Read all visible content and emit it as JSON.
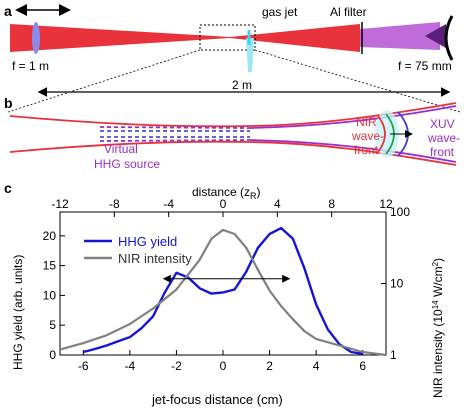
{
  "panel_a": {
    "label": "a",
    "f1": "f = 1 m",
    "gas_jet": "gas jet",
    "al_filter": "Al filter",
    "f75": "f = 75 mm",
    "distance": "2 m"
  },
  "panel_b": {
    "label": "b",
    "virtual1": "Virtual",
    "virtual2": "HHG source",
    "nir1": "NIR",
    "nir2": "wave-",
    "nir3": "front",
    "xuv1": "XUV",
    "xuv2": "wave-",
    "xuv3": "front"
  },
  "panel_c": {
    "label": "c",
    "top_axis_label": "distance (z",
    "top_axis_sub": "R",
    "top_axis_tail": ")",
    "xlabel": "jet-focus distance (cm)",
    "ylabel": "HHG yield (arb. units)",
    "y2label_a": "NIR intensity (10",
    "y2label_sup14": "14",
    "y2label_b": " W/cm",
    "y2label_sup2": "2",
    "y2label_c": ")"
  },
  "chart_data": {
    "type": "line",
    "xlabel": "jet-focus distance (cm)",
    "ylabel": "HHG yield (arb. units)",
    "y2label": "NIR intensity (10^14 W/cm^2)",
    "top_xlabel": "distance (z_R)",
    "xlim": [
      -7,
      7
    ],
    "ylim": [
      0,
      24
    ],
    "y2lim_log": [
      1,
      100
    ],
    "x_ticks": [
      "-6",
      "-4",
      "-2",
      "0",
      "2",
      "4",
      "6"
    ],
    "y_ticks": [
      "0",
      "5",
      "10",
      "15",
      "20"
    ],
    "y2_ticks": [
      "1",
      "10",
      "100"
    ],
    "top_ticks": [
      "-12",
      "-8",
      "-4",
      "0",
      "4",
      "8",
      "12"
    ],
    "legend_placement": "top-left",
    "series": [
      {
        "name": "HHG yield",
        "color": "#1515d8",
        "x": [
          -6,
          -5.5,
          -5,
          -4.5,
          -4,
          -3.5,
          -3,
          -2.5,
          -2,
          -1.5,
          -1,
          -0.5,
          0,
          0.5,
          1,
          1.5,
          2,
          2.5,
          3,
          3.5,
          4,
          4.5,
          5,
          5.5,
          6
        ],
        "y": [
          0.5,
          1.0,
          1.6,
          2.3,
          3.0,
          4.5,
          6.5,
          10.5,
          13.8,
          13.0,
          11.2,
          10.3,
          10.5,
          11.0,
          14.0,
          18.0,
          20.3,
          21.3,
          19.5,
          14.5,
          8.5,
          4.3,
          1.8,
          0.5,
          0.2
        ]
      },
      {
        "name": "NIR intensity",
        "color": "#808080",
        "x": [
          -7,
          -6,
          -5,
          -4,
          -3,
          -2,
          -1.5,
          -1,
          -0.5,
          0,
          0.5,
          1,
          1.5,
          2,
          2.5,
          3,
          3.5,
          4,
          5,
          6,
          7
        ],
        "y": [
          0.9,
          2.0,
          3.3,
          5.2,
          7.8,
          11.0,
          13.5,
          16.0,
          19.5,
          21.0,
          20.3,
          18.0,
          14.3,
          10.8,
          8.2,
          6.0,
          4.0,
          2.7,
          1.6,
          0.5,
          0.0
        ]
      }
    ],
    "annotations": [
      "double-headed arrow from -2 to 2.8 cm at ~12.5"
    ]
  }
}
